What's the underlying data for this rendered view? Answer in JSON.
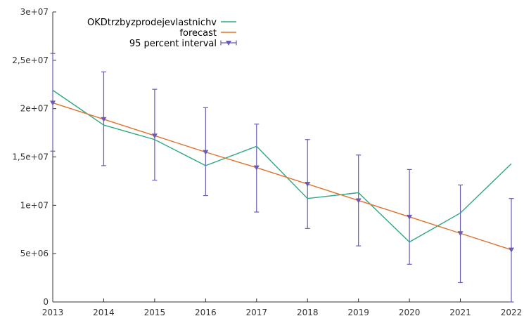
{
  "chart_data": {
    "type": "line",
    "title": "",
    "xlabel": "",
    "ylabel": "",
    "x": [
      2013,
      2014,
      2015,
      2016,
      2017,
      2018,
      2019,
      2020,
      2021,
      2022
    ],
    "xlim": [
      2013,
      2022
    ],
    "ylim": [
      0,
      30000000
    ],
    "x_tick_labels": [
      "2013",
      "2014",
      "2015",
      "2016",
      "2017",
      "2018",
      "2019",
      "2020",
      "2021",
      "2022"
    ],
    "y_ticks": [
      0,
      5000000,
      10000000,
      15000000,
      20000000,
      25000000,
      30000000
    ],
    "y_tick_labels": [
      "0",
      "5e+06",
      "1e+07",
      "1,5e+07",
      "2e+07",
      "2,5e+07",
      "3e+07"
    ],
    "grid": false,
    "legend_position": "top-left",
    "series": [
      {
        "name": "OKDtrzbyzprodejevlastnichv",
        "color": "#2ca884",
        "values": [
          21900000,
          18300000,
          16800000,
          14100000,
          16100000,
          10700000,
          11300000,
          6200000,
          9200000,
          14300000
        ]
      },
      {
        "name": "forecast",
        "color": "#e0722c",
        "values": [
          20600000,
          18900000,
          17200000,
          15500000,
          13900000,
          12200000,
          10500000,
          8800000,
          7100000,
          5400000
        ]
      }
    ],
    "interval": {
      "name": "95 percent interval",
      "color": "#6b5bb0",
      "lower": [
        15600000,
        14100000,
        12600000,
        11000000,
        9300000,
        7600000,
        5800000,
        3900000,
        2000000,
        0
      ],
      "upper": [
        25700000,
        23800000,
        22000000,
        20100000,
        18400000,
        16800000,
        15200000,
        13700000,
        12100000,
        10700000
      ]
    }
  }
}
